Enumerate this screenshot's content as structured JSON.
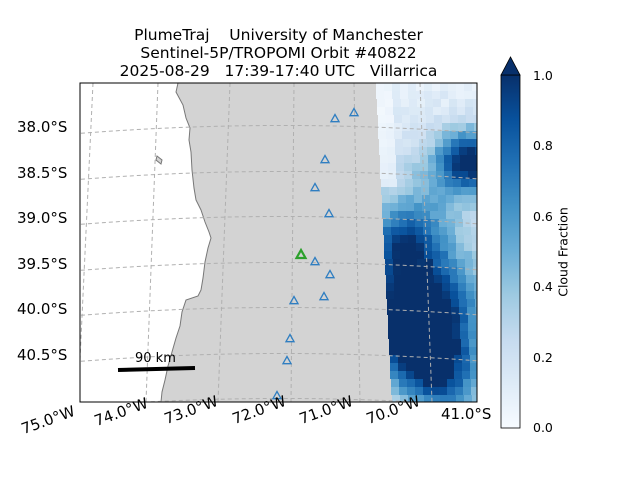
{
  "title": {
    "line1": "PlumeTraj    University of Manchester",
    "line2": "Sentinel-5P/TROPOMI Orbit #40822",
    "line3": "2025-08-29   17:39-17:40 UTC   Villarrica"
  },
  "lat_labels": [
    "38.0°S",
    "38.5°S",
    "39.0°S",
    "39.5°S",
    "40.0°S",
    "40.5°S",
    "41.0°S"
  ],
  "lon_labels": [
    "75.0°W",
    "74.0°W",
    "73.0°W",
    "72.0°W",
    "71.0°W",
    "70.0°W"
  ],
  "scale_bar": {
    "label": "90 km"
  },
  "colorbar": {
    "label": "Cloud Fraction",
    "ticks": [
      "0.0",
      "0.2",
      "0.4",
      "0.6",
      "0.8",
      "1.0"
    ],
    "colormap": "Blues",
    "range": [
      0.0,
      1.0
    ],
    "extend": "max"
  },
  "colors": {
    "land": "#d3d3d3",
    "ocean": "#ffffff",
    "coastline": "#777777",
    "gridline": "#b0b0b0",
    "triangle_blue": "#2f7ec1",
    "triangle_green": "#2ca02c"
  },
  "marker_styles": {
    "blue_triangle": "open triangle",
    "green_triangle": "open triangle (vent)"
  }
}
